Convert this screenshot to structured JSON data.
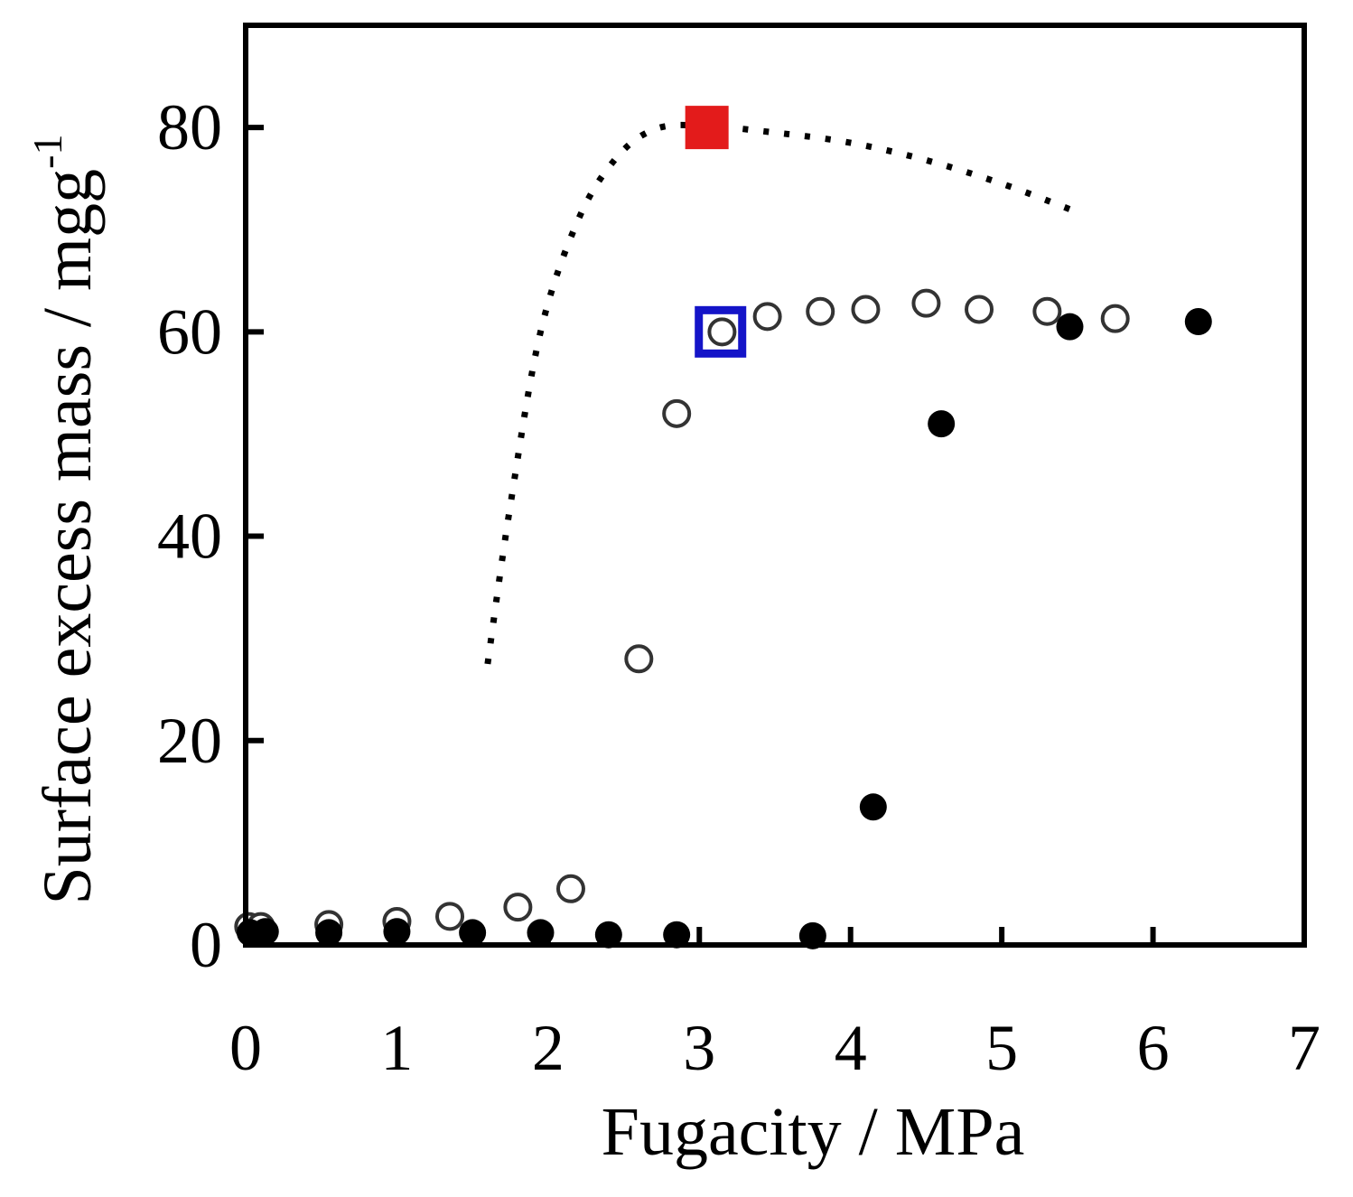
{
  "chart_data": {
    "type": "scatter",
    "xlabel": "Fugacity / MPa",
    "ylabel": "Surface excess mass / mgg",
    "ylabel_superscript": "-1",
    "xlim": [
      0,
      7
    ],
    "ylim": [
      0,
      90
    ],
    "xticks": [
      "0",
      "1",
      "2",
      "3",
      "4",
      "5",
      "6",
      "7"
    ],
    "yticks": [
      "0",
      "20",
      "40",
      "60",
      "80"
    ],
    "grid": false,
    "legend": "none",
    "series": [
      {
        "marker": "open-circle",
        "points": [
          [
            0.02,
            1.8
          ],
          [
            0.1,
            1.8
          ],
          [
            0.55,
            2.0
          ],
          [
            1.0,
            2.3
          ],
          [
            1.35,
            2.8
          ],
          [
            1.8,
            3.7
          ],
          [
            2.15,
            5.5
          ],
          [
            2.6,
            28.0
          ],
          [
            2.85,
            52.0
          ],
          [
            3.15,
            60.0
          ],
          [
            3.45,
            61.5
          ],
          [
            3.8,
            62.0
          ],
          [
            4.1,
            62.2
          ],
          [
            4.5,
            62.8
          ],
          [
            4.85,
            62.2
          ],
          [
            5.3,
            62.0
          ],
          [
            5.75,
            61.3
          ]
        ]
      },
      {
        "marker": "filled-circle",
        "points": [
          [
            0.03,
            1.2
          ],
          [
            0.13,
            1.3
          ],
          [
            0.55,
            1.2
          ],
          [
            1.0,
            1.3
          ],
          [
            1.5,
            1.2
          ],
          [
            1.95,
            1.2
          ],
          [
            2.4,
            1.0
          ],
          [
            2.85,
            1.0
          ],
          [
            3.75,
            0.9
          ],
          [
            4.15,
            13.5
          ],
          [
            4.6,
            51.0
          ],
          [
            5.45,
            60.5
          ],
          [
            6.3,
            61.0
          ]
        ]
      },
      {
        "marker": "dotted-line",
        "points": [
          [
            1.6,
            27.5
          ],
          [
            1.75,
            43.0
          ],
          [
            1.95,
            60.0
          ],
          [
            2.2,
            71.0
          ],
          [
            2.45,
            77.0
          ],
          [
            2.7,
            79.8
          ],
          [
            3.0,
            80.2
          ],
          [
            3.5,
            79.5
          ],
          [
            4.0,
            78.5
          ],
          [
            4.5,
            76.8
          ],
          [
            5.0,
            74.5
          ],
          [
            5.45,
            72.0
          ]
        ]
      }
    ],
    "annotations": [
      {
        "marker": "filled-square",
        "x": 3.05,
        "y": 80.0,
        "color": "#e31b1b"
      },
      {
        "marker": "open-square",
        "x": 3.14,
        "y": 60.0,
        "color": "#1414c8"
      }
    ]
  }
}
